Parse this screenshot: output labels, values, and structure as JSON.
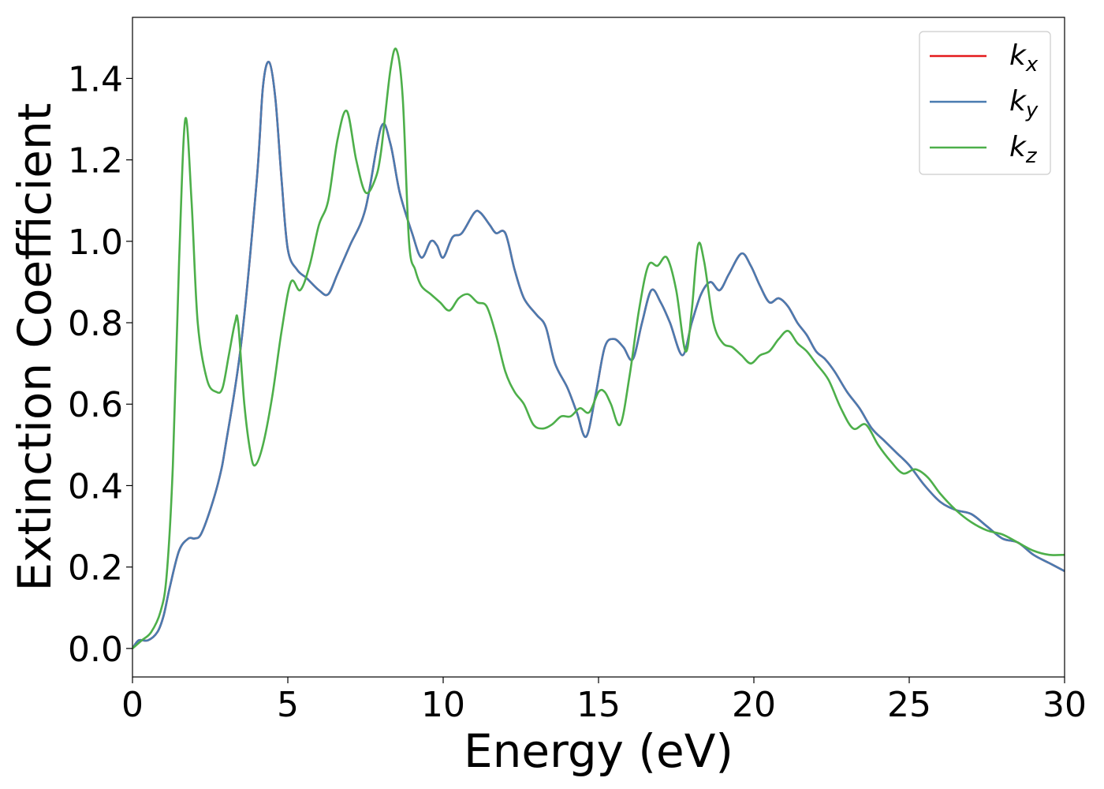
{
  "chart_data": {
    "type": "line",
    "xlabel": "Energy (eV)",
    "ylabel": "Extinction Coefficient",
    "xlim": [
      0,
      30
    ],
    "ylim": [
      -0.07,
      1.55
    ],
    "xticks": [
      0,
      5,
      10,
      15,
      20,
      25,
      30
    ],
    "yticks": [
      0.0,
      0.2,
      0.4,
      0.6,
      0.8,
      1.0,
      1.2,
      1.4
    ],
    "xtick_labels": [
      "0",
      "5",
      "10",
      "15",
      "20",
      "25",
      "30"
    ],
    "ytick_labels": [
      "0.0",
      "0.2",
      "0.4",
      "0.6",
      "0.8",
      "1.0",
      "1.2",
      "1.4"
    ],
    "grid": false,
    "legend_position": "top-right",
    "series": [
      {
        "name": "kx",
        "legend_base": "k",
        "legend_sub": "x",
        "color": "#e41a1c",
        "x": [
          0,
          0.2,
          0.5,
          0.8,
          1.0,
          1.2,
          1.5,
          1.8,
          2.0,
          2.2,
          2.5,
          2.8,
          3.0,
          3.5,
          4.0,
          4.2,
          4.4,
          4.6,
          4.8,
          5.0,
          5.3,
          5.6,
          6.0,
          6.3,
          6.6,
          7.0,
          7.5,
          8.0,
          8.3,
          8.6,
          9.0,
          9.3,
          9.6,
          9.8,
          10.0,
          10.3,
          10.6,
          11.0,
          11.2,
          11.5,
          11.7,
          12.0,
          12.3,
          12.6,
          13.0,
          13.3,
          13.6,
          14.0,
          14.3,
          14.6,
          14.9,
          15.2,
          15.5,
          15.8,
          16.1,
          16.4,
          16.7,
          17.0,
          17.3,
          17.7,
          18.0,
          18.3,
          18.6,
          18.9,
          19.2,
          19.6,
          19.9,
          20.2,
          20.5,
          20.8,
          21.1,
          21.4,
          21.7,
          22.0,
          22.3,
          22.6,
          23.0,
          23.4,
          23.8,
          24.2,
          24.6,
          25.0,
          25.5,
          26.0,
          26.5,
          27.0,
          27.5,
          28.0,
          28.5,
          29.0,
          29.5,
          30.0
        ],
        "y": [
          0.0,
          0.02,
          0.02,
          0.04,
          0.08,
          0.15,
          0.24,
          0.27,
          0.27,
          0.28,
          0.34,
          0.42,
          0.5,
          0.75,
          1.15,
          1.38,
          1.44,
          1.35,
          1.15,
          0.98,
          0.93,
          0.91,
          0.88,
          0.87,
          0.92,
          0.99,
          1.08,
          1.28,
          1.24,
          1.12,
          1.02,
          0.96,
          1.0,
          0.99,
          0.96,
          1.01,
          1.02,
          1.07,
          1.07,
          1.04,
          1.02,
          1.02,
          0.93,
          0.86,
          0.82,
          0.79,
          0.7,
          0.64,
          0.58,
          0.52,
          0.62,
          0.74,
          0.76,
          0.74,
          0.71,
          0.8,
          0.88,
          0.85,
          0.8,
          0.72,
          0.8,
          0.87,
          0.9,
          0.88,
          0.92,
          0.97,
          0.94,
          0.89,
          0.85,
          0.86,
          0.84,
          0.8,
          0.77,
          0.73,
          0.71,
          0.68,
          0.63,
          0.59,
          0.54,
          0.51,
          0.48,
          0.45,
          0.4,
          0.36,
          0.34,
          0.33,
          0.3,
          0.27,
          0.26,
          0.23,
          0.21,
          0.19
        ]
      },
      {
        "name": "ky",
        "legend_base": "k",
        "legend_sub": "y",
        "color": "#4a7bb0",
        "x": [
          0,
          0.2,
          0.5,
          0.8,
          1.0,
          1.2,
          1.5,
          1.8,
          2.0,
          2.2,
          2.5,
          2.8,
          3.0,
          3.5,
          4.0,
          4.2,
          4.4,
          4.6,
          4.8,
          5.0,
          5.3,
          5.6,
          6.0,
          6.3,
          6.6,
          7.0,
          7.5,
          8.0,
          8.3,
          8.6,
          9.0,
          9.3,
          9.6,
          9.8,
          10.0,
          10.3,
          10.6,
          11.0,
          11.2,
          11.5,
          11.7,
          12.0,
          12.3,
          12.6,
          13.0,
          13.3,
          13.6,
          14.0,
          14.3,
          14.6,
          14.9,
          15.2,
          15.5,
          15.8,
          16.1,
          16.4,
          16.7,
          17.0,
          17.3,
          17.7,
          18.0,
          18.3,
          18.6,
          18.9,
          19.2,
          19.6,
          19.9,
          20.2,
          20.5,
          20.8,
          21.1,
          21.4,
          21.7,
          22.0,
          22.3,
          22.6,
          23.0,
          23.4,
          23.8,
          24.2,
          24.6,
          25.0,
          25.5,
          26.0,
          26.5,
          27.0,
          27.5,
          28.0,
          28.5,
          29.0,
          29.5,
          30.0
        ],
        "y": [
          0.0,
          0.02,
          0.02,
          0.04,
          0.08,
          0.15,
          0.24,
          0.27,
          0.27,
          0.28,
          0.34,
          0.42,
          0.5,
          0.75,
          1.15,
          1.38,
          1.44,
          1.35,
          1.15,
          0.98,
          0.93,
          0.91,
          0.88,
          0.87,
          0.92,
          0.99,
          1.08,
          1.28,
          1.24,
          1.12,
          1.02,
          0.96,
          1.0,
          0.99,
          0.96,
          1.01,
          1.02,
          1.07,
          1.07,
          1.04,
          1.02,
          1.02,
          0.93,
          0.86,
          0.82,
          0.79,
          0.7,
          0.64,
          0.58,
          0.52,
          0.62,
          0.74,
          0.76,
          0.74,
          0.71,
          0.8,
          0.88,
          0.85,
          0.8,
          0.72,
          0.8,
          0.87,
          0.9,
          0.88,
          0.92,
          0.97,
          0.94,
          0.89,
          0.85,
          0.86,
          0.84,
          0.8,
          0.77,
          0.73,
          0.71,
          0.68,
          0.63,
          0.59,
          0.54,
          0.51,
          0.48,
          0.45,
          0.4,
          0.36,
          0.34,
          0.33,
          0.3,
          0.27,
          0.26,
          0.23,
          0.21,
          0.19
        ]
      },
      {
        "name": "kz",
        "legend_base": "k",
        "legend_sub": "z",
        "color": "#4daf4a",
        "x": [
          0,
          0.3,
          0.6,
          0.9,
          1.1,
          1.3,
          1.5,
          1.7,
          1.9,
          2.1,
          2.4,
          2.7,
          2.9,
          3.1,
          3.3,
          3.4,
          3.6,
          3.8,
          3.95,
          4.2,
          4.5,
          4.8,
          5.1,
          5.4,
          5.7,
          6.0,
          6.3,
          6.6,
          6.9,
          7.2,
          7.5,
          7.8,
          8.0,
          8.3,
          8.5,
          8.7,
          8.9,
          9.1,
          9.3,
          9.6,
          9.9,
          10.2,
          10.5,
          10.8,
          11.1,
          11.4,
          11.7,
          12.0,
          12.3,
          12.6,
          12.9,
          13.2,
          13.5,
          13.8,
          14.1,
          14.4,
          14.7,
          15.0,
          15.2,
          15.4,
          15.7,
          16.0,
          16.3,
          16.6,
          16.9,
          17.2,
          17.5,
          17.8,
          18.0,
          18.2,
          18.4,
          18.7,
          19.0,
          19.3,
          19.6,
          19.9,
          20.2,
          20.5,
          20.8,
          21.1,
          21.4,
          21.7,
          22.0,
          22.4,
          22.8,
          23.2,
          23.6,
          24.0,
          24.4,
          24.8,
          25.2,
          25.6,
          26.0,
          26.5,
          27.0,
          27.5,
          28.0,
          28.5,
          29.0,
          29.5,
          30.0
        ],
        "y": [
          0.0,
          0.02,
          0.04,
          0.09,
          0.18,
          0.45,
          0.95,
          1.3,
          1.1,
          0.8,
          0.66,
          0.63,
          0.64,
          0.72,
          0.8,
          0.8,
          0.6,
          0.48,
          0.45,
          0.5,
          0.62,
          0.78,
          0.9,
          0.88,
          0.94,
          1.04,
          1.1,
          1.25,
          1.32,
          1.2,
          1.12,
          1.15,
          1.22,
          1.42,
          1.47,
          1.35,
          1.0,
          0.93,
          0.89,
          0.87,
          0.85,
          0.83,
          0.86,
          0.87,
          0.85,
          0.84,
          0.77,
          0.68,
          0.63,
          0.6,
          0.55,
          0.54,
          0.55,
          0.57,
          0.57,
          0.59,
          0.58,
          0.63,
          0.63,
          0.6,
          0.55,
          0.67,
          0.83,
          0.94,
          0.94,
          0.96,
          0.88,
          0.73,
          0.83,
          0.99,
          0.95,
          0.8,
          0.75,
          0.74,
          0.72,
          0.7,
          0.72,
          0.73,
          0.76,
          0.78,
          0.75,
          0.73,
          0.7,
          0.66,
          0.59,
          0.54,
          0.55,
          0.5,
          0.46,
          0.43,
          0.44,
          0.42,
          0.38,
          0.34,
          0.31,
          0.29,
          0.28,
          0.26,
          0.24,
          0.23,
          0.23
        ]
      }
    ]
  }
}
